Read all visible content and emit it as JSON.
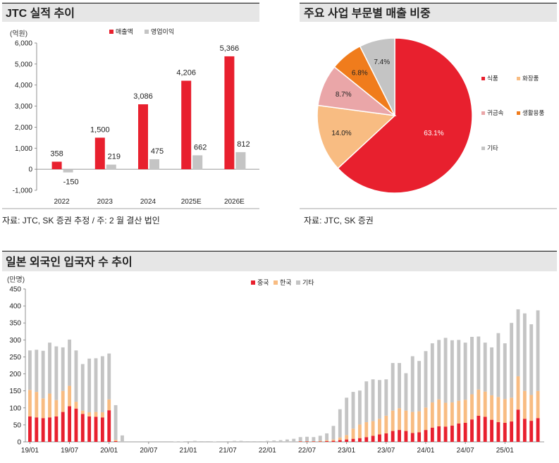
{
  "colors": {
    "header_bg": "#e6e6e6",
    "red": "#e8202e",
    "gray": "#c4c4c4",
    "peach": "#f8bc82",
    "pink": "#eaa6a8",
    "orange": "#f07c1c",
    "text": "#222222",
    "axis": "#777777"
  },
  "panel1": {
    "title": "JTC 실적 추이",
    "unit": "(억원)",
    "source": "자료: JTC, SK 증권 추정 / 주: 2 월 결산 법인"
  },
  "panel2": {
    "title": "주요 사업 부문별 매출 비중",
    "source": "자료: JTC, SK 증권"
  },
  "panel3": {
    "title": "일본 외국인 입국자 수 추이",
    "unit": "(만명)"
  },
  "chart_data": [
    {
      "type": "bar",
      "title": "JTC 실적 추이",
      "ylabel": "(억원)",
      "categories": [
        "2022",
        "2023",
        "2024",
        "2025E",
        "2026E"
      ],
      "series": [
        {
          "name": "매출액",
          "values": [
            358,
            1500,
            3086,
            4206,
            5366
          ],
          "labels": [
            "358",
            "1,500",
            "3,086",
            "4,206",
            "5,366"
          ]
        },
        {
          "name": "영업이익",
          "values": [
            -150,
            219,
            475,
            662,
            812
          ],
          "labels": [
            "-150",
            "219",
            "475",
            "662",
            "812"
          ]
        }
      ],
      "ylim": [
        -1000,
        6000
      ],
      "yticks": [
        -1000,
        0,
        1000,
        2000,
        3000,
        4000,
        5000,
        6000
      ],
      "ytick_labels": [
        "-1,000",
        "0",
        "1,000",
        "2,000",
        "3,000",
        "4,000",
        "5,000",
        "6,000"
      ],
      "legend": "top-center"
    },
    {
      "type": "pie",
      "title": "주요 사업 부문별 매출 비중",
      "slices": [
        {
          "name": "식품",
          "value": 63.1,
          "label": "63.1%"
        },
        {
          "name": "화장품",
          "value": 14.0,
          "label": "14.0%"
        },
        {
          "name": "귀금속",
          "value": 8.7,
          "label": "8.7%"
        },
        {
          "name": "생활용품",
          "value": 6.8,
          "label": "6.8%"
        },
        {
          "name": "기타",
          "value": 7.4,
          "label": "7.4%"
        }
      ],
      "legend": "right"
    },
    {
      "type": "bar",
      "stacked": true,
      "title": "일본 외국인 입국자 수 추이",
      "ylabel": "(만명)",
      "ylim": [
        0,
        450
      ],
      "yticks": [
        0,
        50,
        100,
        150,
        200,
        250,
        300,
        350,
        400,
        450
      ],
      "x_tick_labels": [
        "19/01",
        "19/07",
        "20/01",
        "20/07",
        "21/01",
        "21/07",
        "22/01",
        "22/07",
        "23/01",
        "23/07",
        "24/01",
        "24/07",
        "25/01"
      ],
      "x_tick_every": 6,
      "series": [
        {
          "name": "중국",
          "values": [
            75,
            72,
            70,
            72,
            75,
            88,
            105,
            98,
            82,
            75,
            74,
            72,
            93,
            2,
            0,
            0,
            0,
            0,
            0,
            0,
            0,
            0,
            0,
            0,
            0,
            0,
            0,
            0,
            0,
            0,
            0,
            0,
            0,
            0,
            0,
            0,
            0,
            0,
            0,
            0,
            0,
            1,
            1,
            1,
            1,
            2,
            3,
            5,
            7,
            9,
            11,
            14,
            18,
            22,
            25,
            32,
            35,
            32,
            26,
            28,
            35,
            42,
            46,
            45,
            48,
            54,
            56,
            66,
            77,
            74,
            65,
            58,
            56,
            60,
            95,
            68,
            62,
            70
          ]
        },
        {
          "name": "한국",
          "values": [
            78,
            75,
            58,
            70,
            48,
            62,
            60,
            20,
            10,
            12,
            14,
            15,
            32,
            4,
            0,
            0,
            0,
            0,
            0,
            0,
            0,
            0,
            0,
            0,
            0,
            0,
            0,
            0,
            0,
            0,
            0,
            0,
            0,
            0,
            0,
            0,
            0,
            0,
            0,
            0,
            0,
            1,
            1,
            1,
            2,
            3,
            4,
            8,
            13,
            30,
            40,
            44,
            43,
            46,
            52,
            60,
            64,
            60,
            62,
            62,
            66,
            74,
            79,
            70,
            68,
            67,
            68,
            74,
            77,
            74,
            72,
            74,
            70,
            70,
            98,
            82,
            76,
            80
          ]
        },
        {
          "name": "기타",
          "values": [
            116,
            124,
            140,
            150,
            158,
            128,
            136,
            151,
            137,
            158,
            158,
            165,
            135,
            102,
            19,
            0,
            0,
            0,
            0,
            0,
            0,
            0,
            1,
            1,
            2,
            3,
            2,
            2,
            1,
            0,
            2,
            3,
            3,
            2,
            2,
            2,
            3,
            4,
            5,
            7,
            9,
            12,
            13,
            12,
            15,
            20,
            40,
            83,
            110,
            108,
            100,
            120,
            123,
            114,
            107,
            140,
            133,
            110,
            164,
            148,
            166,
            174,
            175,
            191,
            183,
            179,
            168,
            169,
            156,
            144,
            141,
            188,
            164,
            220,
            197,
            228,
            208,
            237
          ]
        }
      ],
      "legend": "top-center"
    }
  ]
}
